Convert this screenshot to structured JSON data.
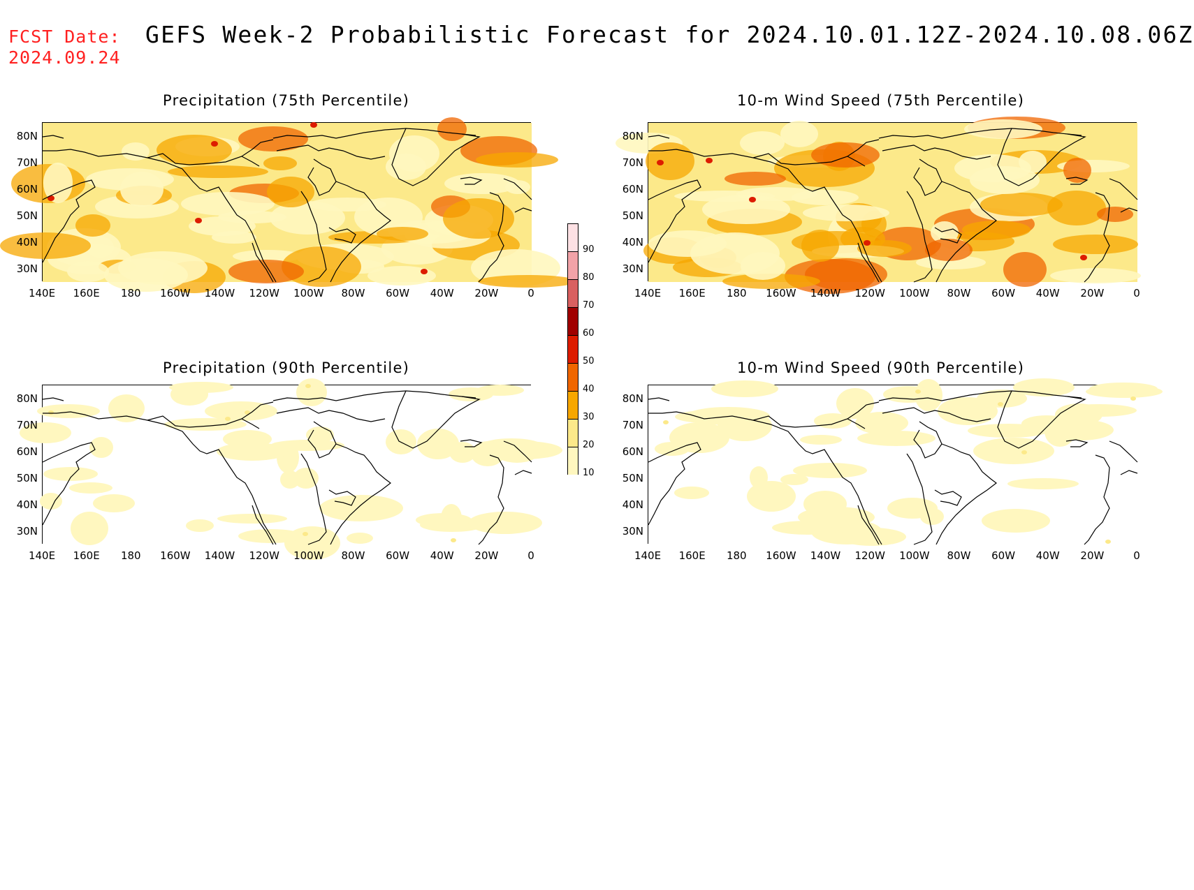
{
  "header": {
    "fcst_label": "FCST Date:",
    "fcst_date": "2024.09.24",
    "title": "GEFS Week-2 Probabilistic Forecast for 2024.10.01.12Z-2024.10.08.06Z"
  },
  "panels": [
    {
      "title": "Precipitation (75th Percentile)",
      "level": "high"
    },
    {
      "title": "10-m Wind Speed (75th Percentile)",
      "level": "high"
    },
    {
      "title": "Precipitation (90th Percentile)",
      "level": "low"
    },
    {
      "title": "10-m Wind Speed (90th Percentile)",
      "level": "low"
    }
  ],
  "axes": {
    "lat_labels": [
      "80N",
      "70N",
      "60N",
      "50N",
      "40N",
      "30N"
    ],
    "lon_labels": [
      "140E",
      "160E",
      "180",
      "160W",
      "140W",
      "120W",
      "100W",
      "80W",
      "60W",
      "40W",
      "20W",
      "0"
    ]
  },
  "colorbar": {
    "labels": [
      "10",
      "20",
      "30",
      "40",
      "50",
      "60",
      "70",
      "80",
      "90"
    ],
    "colors": [
      "#fff7bf",
      "#fce98a",
      "#f7a700",
      "#f06600",
      "#dd1c00",
      "#a00000",
      "#d96060",
      "#f2a3a8",
      "#fde1e4"
    ]
  }
}
